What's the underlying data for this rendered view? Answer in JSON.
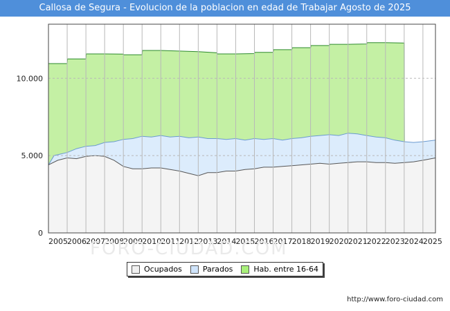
{
  "title": "Callosa de Segura - Evolucion de la poblacion en edad de Trabajar Agosto de 2025",
  "footer": "http://www.foro-ciudad.com",
  "watermark": "FORO-CIUDAD.COM",
  "legend": [
    {
      "label": "Ocupados",
      "color": "#f0f0f0"
    },
    {
      "label": "Parados",
      "color": "#cfe4fb"
    },
    {
      "label": "Hab. entre 16-64",
      "color": "#a8f07a"
    }
  ],
  "chart_data": {
    "type": "area",
    "x_ticks": [
      "2005",
      "2006",
      "2007",
      "2008",
      "2009",
      "2010",
      "2011",
      "2012",
      "2013",
      "2014",
      "2015",
      "2016",
      "2017",
      "2018",
      "2019",
      "2020",
      "2021",
      "2022",
      "2023",
      "2024",
      "2025"
    ],
    "y_ticks": [
      {
        "v": 0,
        "label": "0"
      },
      {
        "v": 5000,
        "label": "5.000"
      },
      {
        "v": 10000,
        "label": "10.000"
      }
    ],
    "ylim": [
      0,
      13500
    ],
    "xlim": [
      2005,
      2025.67
    ],
    "series": [
      {
        "name": "Hab. entre 16-64",
        "fill": "#c4f0a4",
        "line": "#2d8a2d",
        "x": [
          2005,
          2006,
          2006.02,
          2007,
          2007.02,
          2008,
          2009,
          2009.02,
          2010,
          2010.02,
          2011,
          2012,
          2013,
          2014,
          2014.02,
          2015,
          2016,
          2016.02,
          2017,
          2017.02,
          2018,
          2018.02,
          2019,
          2019.02,
          2020,
          2020.02,
          2021,
          2022,
          2022.02,
          2023,
          2024,
          2024.02
        ],
        "y": [
          10950,
          10950,
          11250,
          11250,
          11580,
          11580,
          11570,
          11520,
          11520,
          11800,
          11800,
          11760,
          11720,
          11650,
          11580,
          11580,
          11600,
          11680,
          11680,
          11850,
          11850,
          11980,
          11980,
          12120,
          12120,
          12200,
          12200,
          12220,
          12300,
          12300,
          12280,
          0
        ]
      },
      {
        "name": "Parados",
        "fill": "#dcecfc",
        "line": "#6a9ad0",
        "x": [
          2005,
          2005.3,
          2006,
          2006.5,
          2007,
          2007.5,
          2008,
          2008.5,
          2009,
          2009.5,
          2010,
          2010.5,
          2011,
          2011.5,
          2012,
          2012.5,
          2013,
          2013.5,
          2014,
          2014.5,
          2015,
          2015.5,
          2016,
          2016.5,
          2017,
          2017.5,
          2018,
          2018.5,
          2019,
          2019.5,
          2020,
          2020.5,
          2021,
          2021.5,
          2022,
          2022.5,
          2023,
          2023.5,
          2024,
          2024.5,
          2025,
          2025.67
        ],
        "y": [
          4400,
          5000,
          5200,
          5450,
          5600,
          5650,
          5850,
          5900,
          6050,
          6100,
          6250,
          6200,
          6300,
          6200,
          6250,
          6150,
          6200,
          6100,
          6100,
          6050,
          6100,
          6000,
          6100,
          6050,
          6100,
          6000,
          6100,
          6150,
          6250,
          6300,
          6350,
          6300,
          6450,
          6400,
          6300,
          6200,
          6150,
          6000,
          5900,
          5850,
          5900,
          6000
        ]
      },
      {
        "name": "Ocupados",
        "fill": "#f4f4f4",
        "line": "#555555",
        "x": [
          2005,
          2005.5,
          2006,
          2006.5,
          2007,
          2007.5,
          2008,
          2008.5,
          2009,
          2009.5,
          2010,
          2010.5,
          2011,
          2011.5,
          2012,
          2012.5,
          2013,
          2013.5,
          2014,
          2014.5,
          2015,
          2015.5,
          2016,
          2016.5,
          2017,
          2017.5,
          2018,
          2018.5,
          2019,
          2019.5,
          2020,
          2020.5,
          2021,
          2021.5,
          2022,
          2022.5,
          2023,
          2023.5,
          2024,
          2024.5,
          2025,
          2025.67
        ],
        "y": [
          4400,
          4700,
          4850,
          4800,
          4950,
          5000,
          4950,
          4700,
          4300,
          4150,
          4150,
          4200,
          4200,
          4100,
          4000,
          3850,
          3700,
          3900,
          3900,
          4000,
          4000,
          4100,
          4150,
          4250,
          4250,
          4300,
          4350,
          4400,
          4450,
          4500,
          4450,
          4500,
          4550,
          4600,
          4600,
          4550,
          4550,
          4500,
          4550,
          4600,
          4700,
          4850
        ]
      }
    ]
  }
}
